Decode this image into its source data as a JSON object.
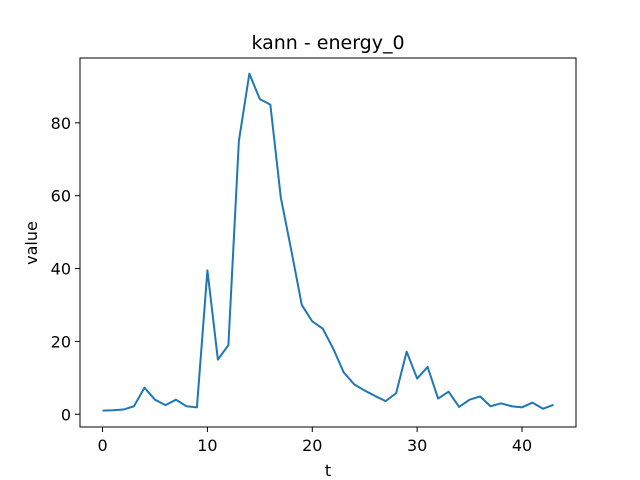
{
  "chart_data": {
    "type": "line",
    "title": "kann - energy_0",
    "xlabel": "t",
    "ylabel": "value",
    "xlim": [
      -2.15,
      45.15
    ],
    "ylim": [
      -3.5,
      97.8
    ],
    "xticks": [
      0,
      10,
      20,
      30,
      40
    ],
    "yticks": [
      0,
      20,
      40,
      60,
      80
    ],
    "grid": false,
    "series": [
      {
        "color": "#1f77b4",
        "x": [
          0,
          1,
          2,
          3,
          4,
          5,
          6,
          7,
          8,
          9,
          10,
          11,
          12,
          13,
          14,
          15,
          16,
          17,
          18,
          19,
          20,
          21,
          22,
          23,
          24,
          25,
          26,
          27,
          28,
          29,
          30,
          31,
          32,
          33,
          34,
          35,
          36,
          37,
          38,
          39,
          40,
          41,
          42,
          43
        ],
        "values": [
          1.0,
          1.1,
          1.3,
          2.2,
          7.3,
          4.0,
          2.5,
          4.0,
          2.2,
          1.9,
          39.5,
          15.0,
          19.0,
          75.0,
          93.5,
          86.5,
          85.0,
          59.5,
          45.0,
          30.0,
          25.5,
          23.5,
          18.0,
          11.5,
          8.2,
          6.5,
          5.0,
          3.6,
          5.8,
          17.2,
          9.8,
          13.0,
          4.3,
          6.2,
          2.0,
          4.0,
          4.9,
          2.2,
          3.0,
          2.2,
          1.9,
          3.2,
          1.5,
          2.6
        ]
      }
    ]
  }
}
